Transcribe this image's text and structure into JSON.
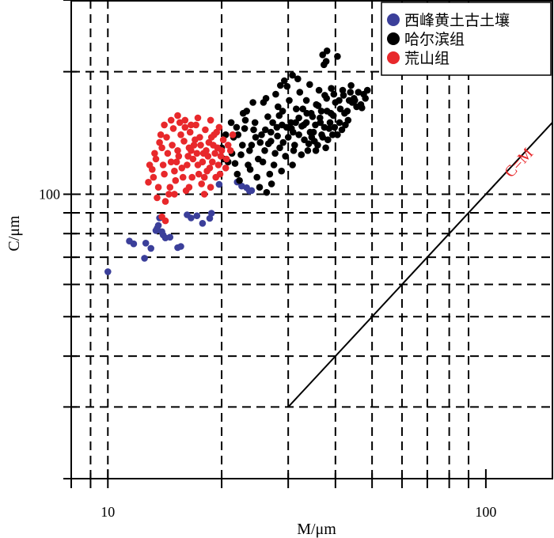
{
  "chart_data": {
    "type": "scatter",
    "xscale": "log",
    "yscale": "log",
    "xlim": [
      8,
      150
    ],
    "ylim": [
      20,
      300
    ],
    "xlabel": "M/μm",
    "ylabel": "C/μm",
    "xticks": [
      {
        "value": 10,
        "label": "10"
      },
      {
        "value": 100,
        "label": "100"
      }
    ],
    "yticks": [
      {
        "value": 100,
        "label": "100"
      }
    ],
    "x_dashed_gridlines": [
      9,
      10,
      20,
      30,
      40,
      50,
      60,
      70,
      80,
      90
    ],
    "y_dashed_gridlines": [
      30,
      40,
      50,
      60,
      70,
      80,
      90,
      100,
      200
    ],
    "grid": true,
    "legend_position": "top-right",
    "reference_line": {
      "label": "C=M",
      "x": [
        30,
        150
      ],
      "y": [
        30,
        150
      ],
      "color": "#e8282b"
    },
    "series": [
      {
        "name": "西峰黄土古土壤",
        "color": "#3b3f9a",
        "points": [
          [
            10.0,
            64.5
          ],
          [
            11.4,
            76.7
          ],
          [
            11.7,
            75.5
          ],
          [
            12.5,
            69.6
          ],
          [
            12.6,
            75.8
          ],
          [
            13.0,
            73.6
          ],
          [
            13.4,
            81.4
          ],
          [
            13.5,
            82.4
          ],
          [
            13.6,
            83.8
          ],
          [
            13.7,
            87.4
          ],
          [
            13.8,
            87.6
          ],
          [
            13.9,
            80.9
          ],
          [
            14.0,
            79.4
          ],
          [
            14.2,
            78.1
          ],
          [
            14.6,
            78.4
          ],
          [
            15.3,
            73.9
          ],
          [
            15.6,
            74.4
          ],
          [
            16.2,
            89.0
          ],
          [
            16.6,
            87.4
          ],
          [
            17.2,
            88.5
          ],
          [
            17.8,
            84.8
          ],
          [
            18.6,
            87.2
          ],
          [
            18.8,
            89.8
          ],
          [
            19.7,
            105.7
          ],
          [
            22.0,
            107.1
          ],
          [
            22.6,
            104.7
          ],
          [
            23.3,
            103.7
          ],
          [
            23.7,
            101.8
          ],
          [
            24.0,
            102.1
          ]
        ]
      },
      {
        "name": "哈尔滨组",
        "color": "#000000",
        "points": [
          [
            20.0,
            130.0
          ],
          [
            20.8,
            120.0
          ],
          [
            21.5,
            138.0
          ],
          [
            22.0,
            112.0
          ],
          [
            22.5,
            125.0
          ],
          [
            23.0,
            145.0
          ],
          [
            23.5,
            118.0
          ],
          [
            24.0,
            132.0
          ],
          [
            24.5,
            150.0
          ],
          [
            25.0,
            122.0
          ],
          [
            25.5,
            140.0
          ],
          [
            26.0,
            128.0
          ],
          [
            26.5,
            155.0
          ],
          [
            27.0,
            135.0
          ],
          [
            27.5,
            118.0
          ],
          [
            28.0,
            146.0
          ],
          [
            28.5,
            130.0
          ],
          [
            29.0,
            160.0
          ],
          [
            29.5,
            124.0
          ],
          [
            30.0,
            138.0
          ],
          [
            30.5,
            150.0
          ],
          [
            31.0,
            128.0
          ],
          [
            31.5,
            162.0
          ],
          [
            32.0,
            140.0
          ],
          [
            32.5,
            125.0
          ],
          [
            33.0,
            148.0
          ],
          [
            33.5,
            170.0
          ],
          [
            34.0,
            133.0
          ],
          [
            34.5,
            158.0
          ],
          [
            35.0,
            142.0
          ],
          [
            35.5,
            128.0
          ],
          [
            36.0,
            165.0
          ],
          [
            36.5,
            150.0
          ],
          [
            37.0,
            138.0
          ],
          [
            37.5,
            175.0
          ],
          [
            38.0,
            160.0
          ],
          [
            38.5,
            145.0
          ],
          [
            39.0,
            182.0
          ],
          [
            39.5,
            156.0
          ],
          [
            40.0,
            168.0
          ],
          [
            41.0,
            150.0
          ],
          [
            42.0,
            175.0
          ],
          [
            43.0,
            160.0
          ],
          [
            44.0,
            185.0
          ],
          [
            45.0,
            170.0
          ],
          [
            46.0,
            178.0
          ],
          [
            47.0,
            163.0
          ],
          [
            48.0,
            172.0
          ],
          [
            22.3,
            108.0
          ],
          [
            24.8,
            110.0
          ],
          [
            26.8,
            112.0
          ],
          [
            28.8,
            114.0
          ],
          [
            30.8,
            118.0
          ],
          [
            23.3,
            160.0
          ],
          [
            25.8,
            168.0
          ],
          [
            27.8,
            176.0
          ],
          [
            29.8,
            184.0
          ],
          [
            31.8,
            192.0
          ],
          [
            33.5,
            150.0
          ],
          [
            35.2,
            135.0
          ],
          [
            36.8,
            140.0
          ],
          [
            38.2,
            136.0
          ],
          [
            40.5,
            140.0
          ],
          [
            42.5,
            148.0
          ],
          [
            21.2,
            150.0
          ],
          [
            22.8,
            158.0
          ],
          [
            24.2,
            168.0
          ],
          [
            26.2,
            172.0
          ],
          [
            28.2,
            164.0
          ],
          [
            30.2,
            170.0
          ],
          [
            32.2,
            178.0
          ],
          [
            34.2,
            186.0
          ],
          [
            36.2,
            180.0
          ],
          [
            37.0,
            220.0
          ],
          [
            38.0,
            225.0
          ],
          [
            37.8,
            212.0
          ],
          [
            40.5,
            218.0
          ],
          [
            37.3,
            208.0
          ],
          [
            30.8,
            196.0
          ],
          [
            28.6,
            185.0
          ],
          [
            29.3,
            190.0
          ],
          [
            32.8,
            162.0
          ],
          [
            34.8,
            155.0
          ],
          [
            36.7,
            160.0
          ],
          [
            38.7,
            150.0
          ],
          [
            41.2,
            162.0
          ],
          [
            43.5,
            170.0
          ],
          [
            45.5,
            164.0
          ],
          [
            47.5,
            176.0
          ],
          [
            25.2,
            104.0
          ],
          [
            26.3,
            101.0
          ],
          [
            27.1,
            106.0
          ],
          [
            23.8,
            115.0
          ],
          [
            21.7,
            119.0
          ],
          [
            20.5,
            140.0
          ],
          [
            21.9,
            146.0
          ],
          [
            23.1,
            152.0
          ],
          [
            24.6,
            138.0
          ],
          [
            26.1,
            144.0
          ],
          [
            27.3,
            150.0
          ],
          [
            28.4,
            156.0
          ],
          [
            29.7,
            146.0
          ],
          [
            30.9,
            142.0
          ],
          [
            32.0,
            154.0
          ],
          [
            33.1,
            136.0
          ],
          [
            34.3,
            142.0
          ],
          [
            35.4,
            148.0
          ],
          [
            36.4,
            154.0
          ],
          [
            37.4,
            146.0
          ],
          [
            38.9,
            158.0
          ],
          [
            39.8,
            146.0
          ],
          [
            40.9,
            170.0
          ],
          [
            42.3,
            158.0
          ],
          [
            43.8,
            178.0
          ],
          [
            44.8,
            172.0
          ],
          [
            46.7,
            166.0
          ],
          [
            48.6,
            180.0
          ],
          [
            25.7,
            120.0
          ],
          [
            27.7,
            126.0
          ],
          [
            29.1,
            134.0
          ],
          [
            31.2,
            132.0
          ],
          [
            33.8,
            128.0
          ],
          [
            35.9,
            132.0
          ],
          [
            37.7,
            130.0
          ],
          [
            39.3,
            140.0
          ],
          [
            41.6,
            144.0
          ],
          [
            43.2,
            152.0
          ],
          [
            26.6,
            133.0
          ],
          [
            28.1,
            139.0
          ],
          [
            30.6,
            145.0
          ],
          [
            32.6,
            147.0
          ],
          [
            34.6,
            138.0
          ],
          [
            24.3,
            144.0
          ],
          [
            22.7,
            132.0
          ],
          [
            21.3,
            126.0
          ],
          [
            20.3,
            122.0
          ],
          [
            22.1,
            140.0
          ],
          [
            23.7,
            128.0
          ],
          [
            25.3,
            134.0
          ],
          [
            27.0,
            142.0
          ],
          [
            28.9,
            148.0
          ],
          [
            31.4,
            150.0
          ],
          [
            33.6,
            158.0
          ],
          [
            35.6,
            166.0
          ],
          [
            37.9,
            172.0
          ],
          [
            39.6,
            176.0
          ],
          [
            41.8,
            180.0
          ],
          [
            44.3,
            168.0
          ]
        ]
      },
      {
        "name": "荒山组",
        "color": "#e8282b",
        "points": [
          [
            12.8,
            107.0
          ],
          [
            13.1,
            115.0
          ],
          [
            13.4,
            122.0
          ],
          [
            13.6,
            104.0
          ],
          [
            13.9,
            130.0
          ],
          [
            14.1,
            112.0
          ],
          [
            14.3,
            138.0
          ],
          [
            14.5,
            100.0
          ],
          [
            14.7,
            120.0
          ],
          [
            14.9,
            145.0
          ],
          [
            15.1,
            108.0
          ],
          [
            15.3,
            128.0
          ],
          [
            15.5,
            150.0
          ],
          [
            15.7,
            116.0
          ],
          [
            15.9,
            135.0
          ],
          [
            16.1,
            102.0
          ],
          [
            16.3,
            124.0
          ],
          [
            16.5,
            142.0
          ],
          [
            16.7,
            110.0
          ],
          [
            16.9,
            132.0
          ],
          [
            17.1,
            148.0
          ],
          [
            17.3,
            118.0
          ],
          [
            17.5,
            138.0
          ],
          [
            17.7,
            106.0
          ],
          [
            17.9,
            126.0
          ],
          [
            18.1,
            144.0
          ],
          [
            18.3,
            114.0
          ],
          [
            18.5,
            134.0
          ],
          [
            18.7,
            152.0
          ],
          [
            18.9,
            120.0
          ],
          [
            19.1,
            140.0
          ],
          [
            19.3,
            110.0
          ],
          [
            19.5,
            130.0
          ],
          [
            19.7,
            146.0
          ],
          [
            19.9,
            124.0
          ],
          [
            20.2,
            136.0
          ],
          [
            20.5,
            116.0
          ],
          [
            20.8,
            132.0
          ],
          [
            21.1,
            128.0
          ],
          [
            21.4,
            140.0
          ],
          [
            13.3,
            126.0
          ],
          [
            13.7,
            134.0
          ],
          [
            14.0,
            118.0
          ],
          [
            14.4,
            126.0
          ],
          [
            14.8,
            132.0
          ],
          [
            15.2,
            120.0
          ],
          [
            15.6,
            140.0
          ],
          [
            16.0,
            146.0
          ],
          [
            16.4,
            130.0
          ],
          [
            16.8,
            122.0
          ],
          [
            17.2,
            126.0
          ],
          [
            17.6,
            132.0
          ],
          [
            18.0,
            110.0
          ],
          [
            18.4,
            124.0
          ],
          [
            18.8,
            138.0
          ],
          [
            19.2,
            126.0
          ],
          [
            19.6,
            118.0
          ],
          [
            20.0,
            128.0
          ],
          [
            13.5,
            98.0
          ],
          [
            14.2,
            96.0
          ],
          [
            14.6,
            104.0
          ],
          [
            15.0,
            114.0
          ],
          [
            15.4,
            124.0
          ],
          [
            15.8,
            110.0
          ],
          [
            16.2,
            118.0
          ],
          [
            16.6,
            128.0
          ],
          [
            17.0,
            136.0
          ],
          [
            17.4,
            112.0
          ],
          [
            17.8,
            120.0
          ],
          [
            18.2,
            128.0
          ],
          [
            18.6,
            116.0
          ],
          [
            19.0,
            132.0
          ],
          [
            19.4,
            142.0
          ],
          [
            19.8,
            112.0
          ],
          [
            12.9,
            118.0
          ],
          [
            13.2,
            110.0
          ],
          [
            13.8,
            140.0
          ],
          [
            14.1,
            148.0
          ],
          [
            14.7,
            152.0
          ],
          [
            15.3,
            156.0
          ],
          [
            16.0,
            152.0
          ],
          [
            16.6,
            148.0
          ],
          [
            17.3,
            154.0
          ],
          [
            13.9,
            88.0
          ],
          [
            14.2,
            86.0
          ],
          [
            15.0,
            100.0
          ],
          [
            16.4,
            104.0
          ],
          [
            18.0,
            100.0
          ],
          [
            18.7,
            104.0
          ],
          [
            20.6,
            122.0
          ]
        ]
      }
    ]
  }
}
